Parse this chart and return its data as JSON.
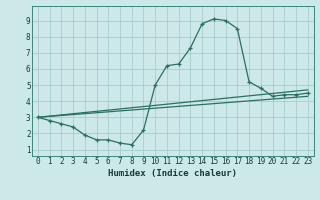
{
  "xlabel": "Humidex (Indice chaleur)",
  "bg_color": "#cce8e8",
  "grid_color": "#a8cccc",
  "line_color": "#2a7060",
  "xlim": [
    -0.5,
    23.5
  ],
  "ylim": [
    0.6,
    9.9
  ],
  "xticks": [
    0,
    1,
    2,
    3,
    4,
    5,
    6,
    7,
    8,
    9,
    10,
    11,
    12,
    13,
    14,
    15,
    16,
    17,
    18,
    19,
    20,
    21,
    22,
    23
  ],
  "yticks": [
    1,
    2,
    3,
    4,
    5,
    6,
    7,
    8,
    9
  ],
  "line1_x": [
    0,
    1,
    2,
    3,
    4,
    5,
    6,
    7,
    8,
    9,
    10,
    11,
    12,
    13,
    14,
    15,
    16,
    17,
    18,
    19,
    20,
    21,
    22,
    23
  ],
  "line1_y": [
    3.0,
    2.8,
    2.6,
    2.4,
    1.9,
    1.6,
    1.6,
    1.4,
    1.3,
    2.2,
    5.0,
    6.2,
    6.3,
    7.3,
    8.8,
    9.1,
    9.0,
    8.5,
    5.2,
    4.8,
    4.3,
    4.4,
    4.4,
    4.5
  ],
  "line2_x": [
    0,
    23
  ],
  "line2_y": [
    3.0,
    4.7
  ],
  "line3_x": [
    0,
    23
  ],
  "line3_y": [
    3.0,
    4.3
  ]
}
